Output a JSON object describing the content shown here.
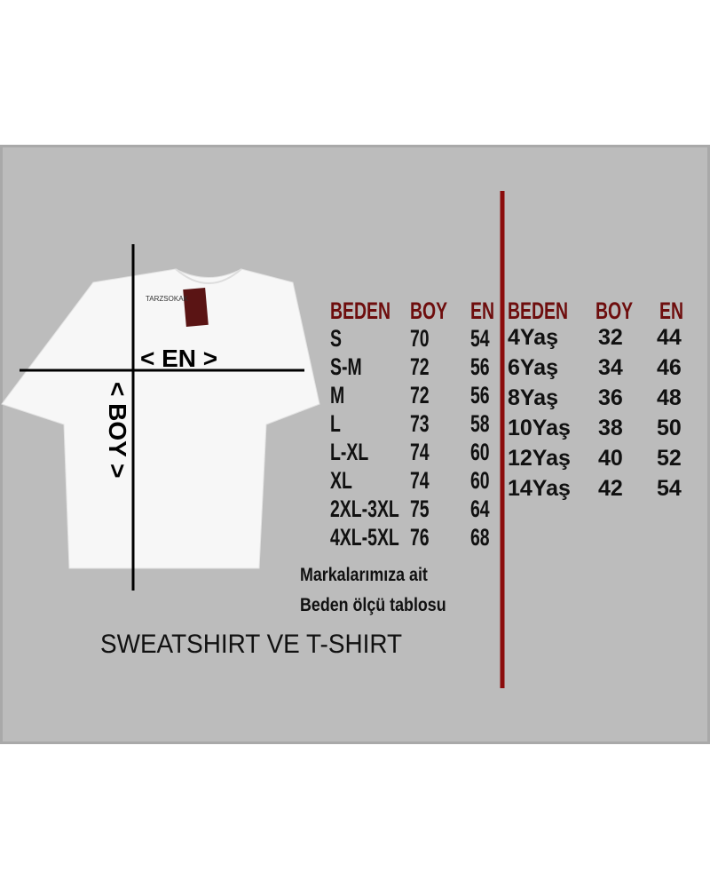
{
  "shirt": {
    "neck_label": "TARZSOKAK",
    "tag_label": "TARZSOKAK",
    "width_label": "< EN >",
    "length_label": "< BOY >"
  },
  "adult_table": {
    "headers": [
      "BEDEN",
      "BOY",
      "EN"
    ],
    "rows": [
      [
        "S",
        "70",
        "54"
      ],
      [
        "S-M",
        "72",
        "56"
      ],
      [
        "M",
        "72",
        "56"
      ],
      [
        "L",
        "73",
        "58"
      ],
      [
        "L-XL",
        "74",
        "60"
      ],
      [
        "XL",
        "74",
        "60"
      ],
      [
        "2XL-3XL",
        "75",
        "64"
      ],
      [
        "4XL-5XL",
        "76",
        "68"
      ]
    ]
  },
  "kids_table": {
    "headers": [
      "BEDEN",
      "BOY",
      "EN"
    ],
    "rows": [
      [
        "4Yaş",
        "32",
        "44"
      ],
      [
        "6Yaş",
        "34",
        "46"
      ],
      [
        "8Yaş",
        "36",
        "48"
      ],
      [
        "10Yaş",
        "38",
        "50"
      ],
      [
        "12Yaş",
        "40",
        "52"
      ],
      [
        "14Yaş",
        "42",
        "54"
      ]
    ]
  },
  "note_line1": "Markalarımıza ait",
  "note_line2": "Beden ölçü tablosu",
  "title": "SWEATSHIRT VE T-SHIRT",
  "colors": {
    "header": "#6e0d0d",
    "divider": "#8b0c0c",
    "panel": "#bcbcbc"
  }
}
